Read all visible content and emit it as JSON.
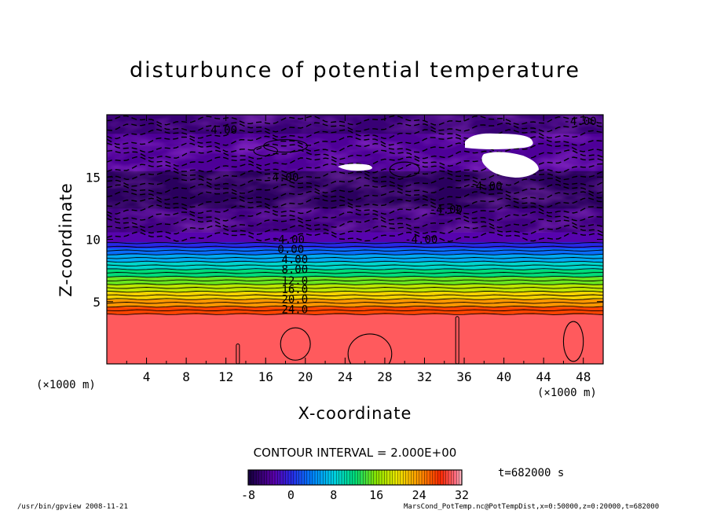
{
  "chart_data": {
    "type": "heatmap",
    "title": "disturbunce of potential temperature",
    "xlabel": "X-coordinate",
    "ylabel": "Z-coordinate",
    "x_unit": "(×1000 m)",
    "y_unit": "(×1000 m)",
    "xlim": [
      0,
      50
    ],
    "ylim": [
      0,
      20
    ],
    "x_ticks": [
      4,
      8,
      12,
      16,
      20,
      24,
      28,
      32,
      36,
      40,
      44,
      48
    ],
    "y_ticks": [
      5,
      10,
      15
    ],
    "contour_labels": [
      "-4.00",
      "-4.00",
      "-4.00",
      "-4.00",
      "-4.00",
      "-4.00",
      "-4.00",
      "0.00",
      "4.00",
      "8.00",
      "12.0",
      "16.0",
      "20.0",
      "24.0"
    ],
    "contour_interval": "CONTOUR INTERVAL = 2.000E+00",
    "colorbar": {
      "min": -8,
      "max": 32,
      "ticks": [
        -8,
        0,
        8,
        16,
        24,
        32
      ]
    },
    "layers": [
      {
        "z0": 0,
        "z1": 4.0,
        "value": 30
      },
      {
        "z0": 4.0,
        "z1": 4.6,
        "value": 27
      },
      {
        "z0": 4.6,
        "z1": 5.2,
        "value": 24
      },
      {
        "z0": 5.2,
        "z1": 5.8,
        "value": 21
      },
      {
        "z0": 5.8,
        "z1": 6.4,
        "value": 18
      },
      {
        "z0": 6.4,
        "z1": 7.0,
        "value": 15
      },
      {
        "z0": 7.0,
        "z1": 7.6,
        "value": 12
      },
      {
        "z0": 7.6,
        "z1": 8.2,
        "value": 9
      },
      {
        "z0": 8.2,
        "z1": 8.8,
        "value": 6
      },
      {
        "z0": 8.8,
        "z1": 9.3,
        "value": 3
      },
      {
        "z0": 9.3,
        "z1": 9.8,
        "value": 0
      },
      {
        "z0": 9.8,
        "z1": 10.6,
        "value": -3
      },
      {
        "z0": 10.6,
        "z1": 12.5,
        "value": -5
      },
      {
        "z0": 12.5,
        "z1": 15.5,
        "value": -6.5
      },
      {
        "z0": 15.5,
        "z1": 18.5,
        "value": -4
      },
      {
        "z0": 18.5,
        "z1": 20,
        "value": -5.5
      }
    ]
  },
  "time_label": "t=682000 s",
  "footer": {
    "left": "/usr/bin/gpview   2008-11-21",
    "right": "MarsCond_PotTemp.nc@PotTempDist,x=0:50000,z=0:20000,t=682000"
  }
}
